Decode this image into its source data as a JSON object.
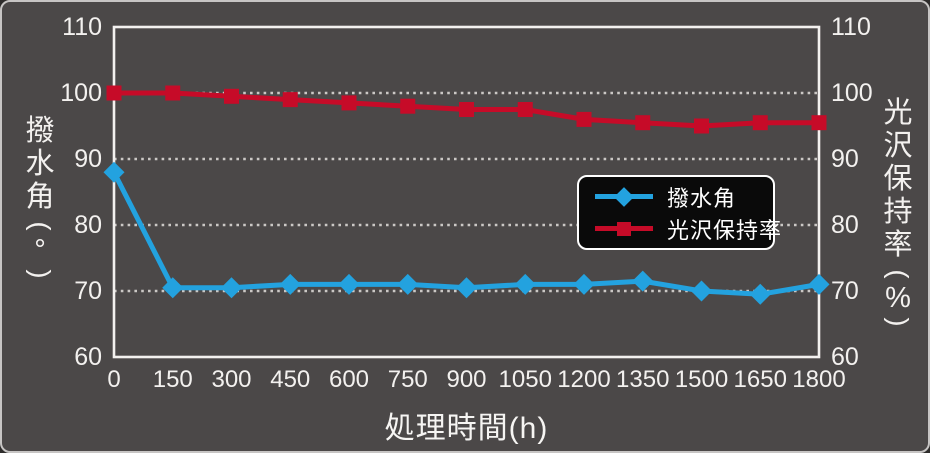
{
  "colors": {
    "background": "#4B4848",
    "frame": "#F3F1EF",
    "grid": "#CBC8C5",
    "text": "#F3F1EF",
    "blue": "#23A2DF",
    "red": "#C60B28",
    "legend_bg": "#0A0A0A",
    "legend_border": "#FFFFFF"
  },
  "chart_data": {
    "type": "line",
    "x": [
      0,
      150,
      300,
      450,
      600,
      750,
      900,
      1050,
      1200,
      1350,
      1500,
      1650,
      1800
    ],
    "series": [
      {
        "name": "撥水角",
        "axis": "left",
        "color_key": "blue",
        "marker": "diamond",
        "values": [
          88,
          70.5,
          70.5,
          71,
          71,
          71,
          70.5,
          71,
          71,
          71.5,
          70,
          69.5,
          71
        ]
      },
      {
        "name": "光沢保持率",
        "axis": "right",
        "color_key": "red",
        "marker": "square",
        "values": [
          100,
          100,
          99.5,
          99,
          98.5,
          98,
          97.5,
          97.5,
          96,
          95.5,
          95,
          95.5,
          95.5
        ]
      }
    ],
    "xlabel": "処理時間(h)",
    "ylabel_left": "撥水角(°)",
    "ylabel_right": "光沢保持率(%)",
    "ylim": [
      60,
      110
    ],
    "yticks": [
      110,
      100,
      90,
      80,
      70,
      60
    ],
    "grid_yticks": [
      100,
      90,
      80,
      70
    ],
    "grid_style": "dotted-horizontal",
    "legend_position": "inside-center-right"
  },
  "legend": {
    "items": [
      {
        "label": "撥水角"
      },
      {
        "label": "光沢保持率"
      }
    ]
  }
}
